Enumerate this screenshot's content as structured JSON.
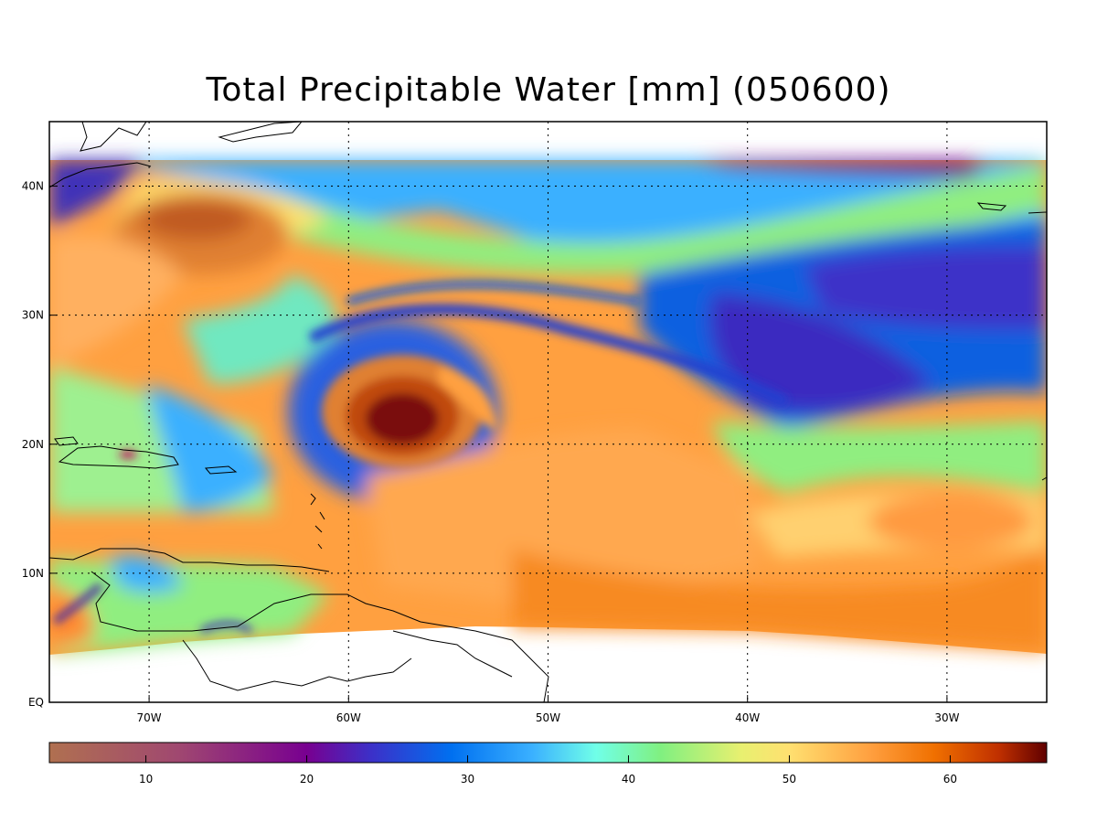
{
  "title": "Total Precipitable Water [mm]  (050600)",
  "map": {
    "lon_range": [
      -75,
      -25
    ],
    "lat_range": [
      0,
      45
    ],
    "data_lat_top": 42,
    "lon_ticks": [
      {
        "value": -70,
        "label": "70W"
      },
      {
        "value": -60,
        "label": "60W"
      },
      {
        "value": -50,
        "label": "50W"
      },
      {
        "value": -40,
        "label": "40W"
      },
      {
        "value": -30,
        "label": "30W"
      }
    ],
    "lat_ticks": [
      {
        "value": 0,
        "label": "EQ"
      },
      {
        "value": 10,
        "label": "10N"
      },
      {
        "value": 20,
        "label": "20N"
      },
      {
        "value": 30,
        "label": "30N"
      },
      {
        "value": 40,
        "label": "40N"
      }
    ],
    "grid": "dotted"
  },
  "colorbar": {
    "range": [
      4,
      66
    ],
    "ticks": [
      10,
      20,
      30,
      40,
      50,
      60
    ],
    "stops": [
      {
        "value": 4,
        "color": "#b07050"
      },
      {
        "value": 12,
        "color": "#a04870"
      },
      {
        "value": 20,
        "color": "#780090"
      },
      {
        "value": 24,
        "color": "#3c30c8"
      },
      {
        "value": 29,
        "color": "#0070f0"
      },
      {
        "value": 34,
        "color": "#3ab0ff"
      },
      {
        "value": 38,
        "color": "#70ffe8"
      },
      {
        "value": 42,
        "color": "#80f080"
      },
      {
        "value": 47,
        "color": "#e8f070"
      },
      {
        "value": 50,
        "color": "#ffe070"
      },
      {
        "value": 55,
        "color": "#ffa040"
      },
      {
        "value": 59,
        "color": "#f07000"
      },
      {
        "value": 63,
        "color": "#c03000"
      },
      {
        "value": 66,
        "color": "#600000"
      }
    ]
  }
}
